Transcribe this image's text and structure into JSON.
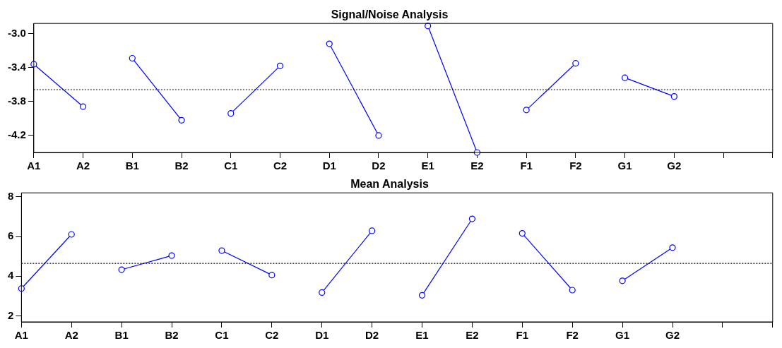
{
  "chart_data": [
    {
      "type": "line",
      "title": "Signal/Noise Analysis",
      "categories": [
        "A1",
        "A2",
        "B1",
        "B2",
        "C1",
        "C2",
        "D1",
        "D2",
        "E1",
        "E2",
        "F1",
        "F2",
        "G1",
        "G2",
        null,
        null
      ],
      "ylim": [
        -4.4,
        -2.88
      ],
      "yticks": [
        {
          "value": -3,
          "label": "-3.0"
        },
        -3.4,
        -3.8,
        -4.2
      ],
      "grid": false,
      "legend": false,
      "marker": "circle",
      "line_style": "solid",
      "series": [
        {
          "color": "#0000ff",
          "values": [
            -3.36,
            -3.86,
            null,
            null,
            null,
            null,
            null,
            null,
            null,
            null,
            null,
            null,
            null,
            null,
            null,
            null
          ]
        },
        {
          "color": "#0000ff",
          "values": [
            null,
            null,
            -3.29,
            -4.02,
            null,
            null,
            null,
            null,
            null,
            null,
            null,
            null,
            null,
            null,
            null,
            null
          ]
        },
        {
          "color": "#0000ff",
          "values": [
            null,
            null,
            null,
            null,
            -3.94,
            -3.38,
            null,
            null,
            null,
            null,
            null,
            null,
            null,
            null,
            null,
            null
          ]
        },
        {
          "color": "#0000ff",
          "values": [
            null,
            null,
            null,
            null,
            null,
            null,
            -3.12,
            -4.2,
            null,
            null,
            null,
            null,
            null,
            null,
            null,
            null
          ]
        },
        {
          "color": "#0000ff",
          "values": [
            null,
            null,
            null,
            null,
            null,
            null,
            null,
            null,
            -2.91,
            -4.4,
            null,
            null,
            null,
            null,
            null,
            null
          ]
        },
        {
          "color": "#0000ff",
          "values": [
            null,
            null,
            null,
            null,
            null,
            null,
            null,
            null,
            null,
            null,
            -3.9,
            -3.35,
            null,
            null,
            null,
            null
          ]
        },
        {
          "color": "#0000ff",
          "values": [
            null,
            null,
            null,
            null,
            null,
            null,
            null,
            null,
            null,
            null,
            null,
            null,
            -3.52,
            -3.74,
            null,
            null
          ]
        }
      ],
      "ref_lines": [
        {
          "axis": "y",
          "value": -3.66,
          "color": "#000000",
          "line_style": "dotted"
        }
      ]
    },
    {
      "type": "line",
      "title": "Mean Analysis",
      "categories": [
        "A1",
        "A2",
        "B1",
        "B2",
        "C1",
        "C2",
        "D1",
        "D2",
        "E1",
        "E2",
        "F1",
        "F2",
        "G1",
        "G2",
        null,
        null
      ],
      "ylim": [
        1.7,
        8.2
      ],
      "yticks": [
        2,
        4,
        6,
        8
      ],
      "grid": false,
      "legend": false,
      "marker": "circle",
      "line_style": "solid",
      "series": [
        {
          "color": "#0000ff",
          "values": [
            3.38,
            6.11,
            null,
            null,
            null,
            null,
            null,
            null,
            null,
            null,
            null,
            null,
            null,
            null,
            null,
            null
          ]
        },
        {
          "color": "#0000ff",
          "values": [
            null,
            null,
            4.33,
            5.04,
            null,
            null,
            null,
            null,
            null,
            null,
            null,
            null,
            null,
            null,
            null,
            null
          ]
        },
        {
          "color": "#0000ff",
          "values": [
            null,
            null,
            null,
            null,
            5.29,
            4.06,
            null,
            null,
            null,
            null,
            null,
            null,
            null,
            null,
            null,
            null
          ]
        },
        {
          "color": "#0000ff",
          "values": [
            null,
            null,
            null,
            null,
            null,
            null,
            3.18,
            6.29,
            null,
            null,
            null,
            null,
            null,
            null,
            null,
            null
          ]
        },
        {
          "color": "#0000ff",
          "values": [
            null,
            null,
            null,
            null,
            null,
            null,
            null,
            null,
            3.04,
            6.89,
            null,
            null,
            null,
            null,
            null,
            null
          ]
        },
        {
          "color": "#0000ff",
          "values": [
            null,
            null,
            null,
            null,
            null,
            null,
            null,
            null,
            null,
            null,
            6.16,
            3.3,
            null,
            null,
            null,
            null
          ]
        },
        {
          "color": "#0000ff",
          "values": [
            null,
            null,
            null,
            null,
            null,
            null,
            null,
            null,
            null,
            null,
            null,
            null,
            3.77,
            5.44,
            null,
            null
          ]
        }
      ],
      "ref_lines": [
        {
          "axis": "y",
          "value": 4.65,
          "color": "#000000",
          "line_style": "dotted"
        }
      ]
    }
  ]
}
